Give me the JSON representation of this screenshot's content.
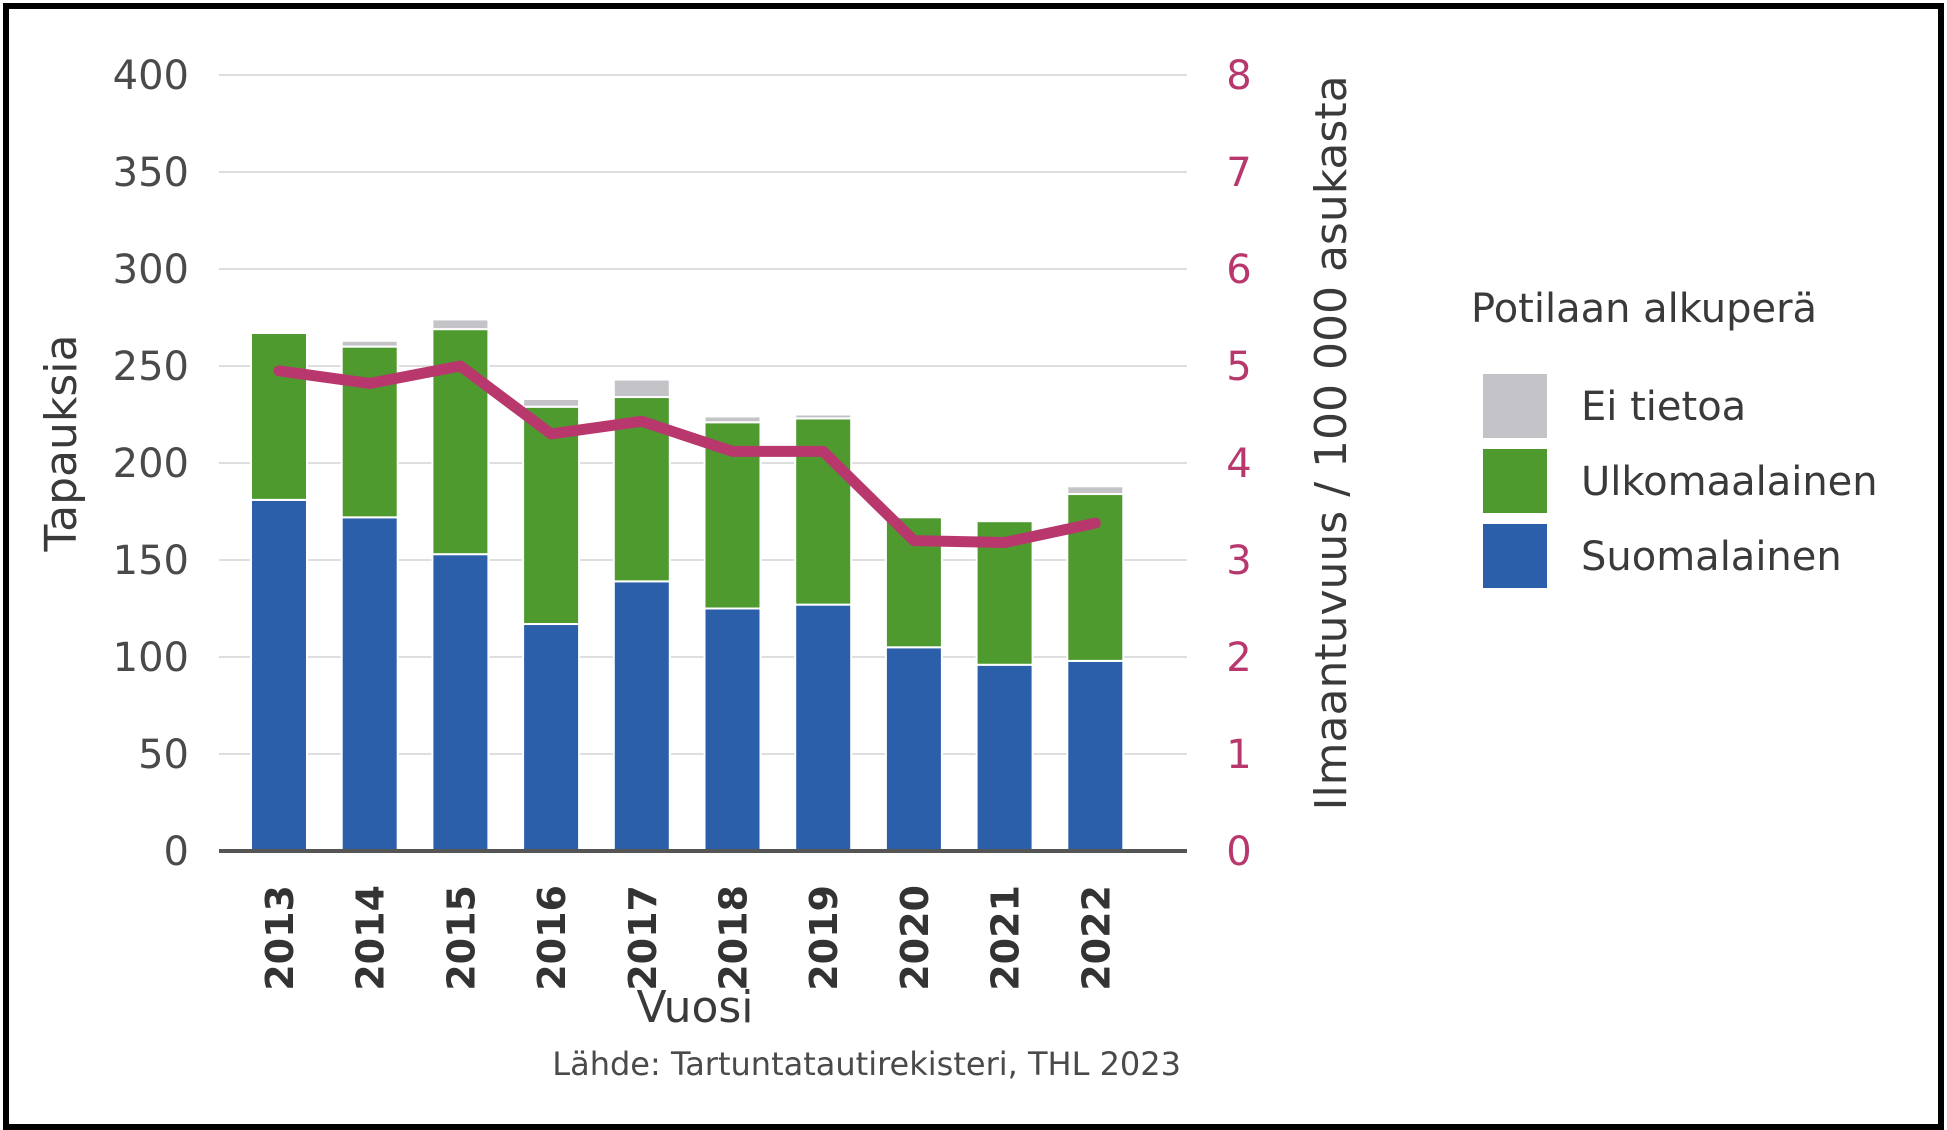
{
  "chart_data": {
    "type": "bar",
    "stacked": true,
    "categories": [
      "2013",
      "2014",
      "2015",
      "2016",
      "2017",
      "2018",
      "2019",
      "2020",
      "2021",
      "2022"
    ],
    "series": [
      {
        "name": "Suomalainen",
        "color": "#2c5faa",
        "values": [
          181,
          172,
          153,
          117,
          139,
          125,
          127,
          105,
          96,
          98
        ]
      },
      {
        "name": "Ulkomaalainen",
        "color": "#4e9a2f",
        "values": [
          86,
          88,
          116,
          112,
          95,
          96,
          96,
          67,
          74,
          86
        ]
      },
      {
        "name": "Ei tietoa",
        "color": "#c4c4c8",
        "values": [
          0,
          3,
          5,
          4,
          9,
          3,
          2,
          0,
          0,
          4
        ]
      }
    ],
    "line_series": {
      "name": "Ilmaantuvuus / 100 000 asukasta",
      "color": "#b8386e",
      "axis": "right",
      "values": [
        4.95,
        4.82,
        5.0,
        4.3,
        4.43,
        4.12,
        4.12,
        3.2,
        3.18,
        3.38
      ]
    },
    "xlabel": "Vuosi",
    "ylabel": "Tapauksia",
    "y2label": "Ilmaantuvuus / 100 000 asukasta",
    "ylim": [
      0,
      400
    ],
    "yticks": [
      "0",
      "50",
      "100",
      "150",
      "200",
      "250",
      "300",
      "350",
      "400"
    ],
    "y2lim": [
      0,
      8
    ],
    "y2ticks": [
      "0",
      "1",
      "2",
      "3",
      "4",
      "5",
      "6",
      "7",
      "8"
    ],
    "y2_color": "#b8386e",
    "grid": true,
    "legend": {
      "title": "Potilaan alkuperä",
      "placement": "right",
      "items": [
        "Ei tietoa",
        "Ulkomaalainen",
        "Suomalainen"
      ]
    },
    "source": "Lähde: Tartuntatautirekisteri, THL 2023"
  }
}
